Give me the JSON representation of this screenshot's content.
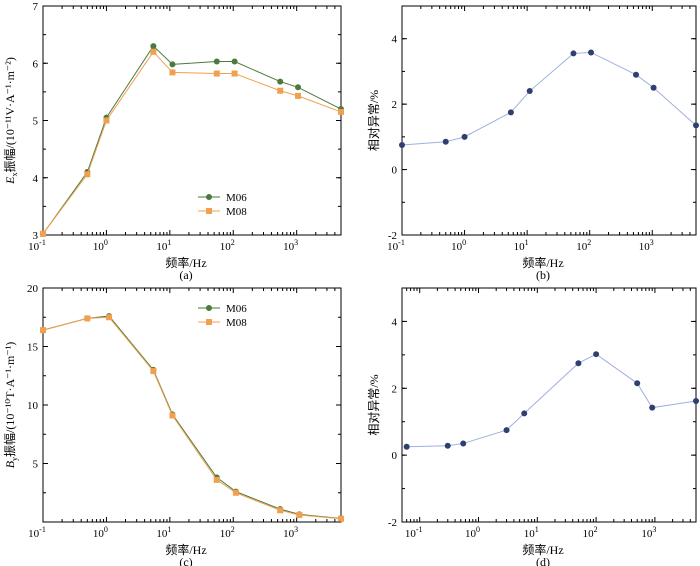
{
  "chart_data": [
    {
      "id": "a",
      "type": "line",
      "panel_label": "(a)",
      "xlabel": "频率/Hz",
      "ylabel_main": "E",
      "ylabel_sub": "x",
      "ylabel_rest": "振幅/(10⁻¹¹V·A⁻¹·m⁻²)",
      "xscale": "log",
      "xlim": [
        0.1,
        5000
      ],
      "ylim": [
        3,
        7
      ],
      "yticks": [
        3,
        4,
        5,
        6,
        7
      ],
      "ytick_labels": [
        "3",
        "4",
        "5",
        "6",
        "7"
      ],
      "xticks": [
        0.1,
        1,
        10,
        100,
        1000
      ],
      "xtick_labels": [
        {
          "base": "10",
          "exp": "-1"
        },
        {
          "base": "10",
          "exp": "0"
        },
        {
          "base": "10",
          "exp": "1"
        },
        {
          "base": "10",
          "exp": "2"
        },
        {
          "base": "10",
          "exp": "3"
        }
      ],
      "legend_position": "center-bottom",
      "series": [
        {
          "name": "M06",
          "color": "#4a7a3c",
          "marker": "circle",
          "x": [
            0.1,
            0.5,
            1.0,
            5.5,
            11,
            55,
            105,
            550,
            1050,
            5000
          ],
          "values": [
            3.02,
            4.1,
            5.05,
            6.3,
            5.98,
            6.03,
            6.03,
            5.68,
            5.58,
            5.2
          ]
        },
        {
          "name": "M08",
          "color": "#f0a050",
          "marker": "square",
          "x": [
            0.1,
            0.5,
            1.0,
            5.5,
            11,
            55,
            105,
            550,
            1050,
            5000
          ],
          "values": [
            3.02,
            4.06,
            5.0,
            6.2,
            5.84,
            5.82,
            5.82,
            5.52,
            5.43,
            5.15
          ]
        }
      ]
    },
    {
      "id": "b",
      "type": "line",
      "panel_label": "(b)",
      "xlabel": "频率/Hz",
      "ylabel": "相对异常/%",
      "xscale": "log",
      "xlim": [
        0.1,
        5000
      ],
      "ylim": [
        -2,
        5
      ],
      "yticks": [
        -2,
        0,
        2,
        4
      ],
      "ytick_labels": [
        "-2",
        "0",
        "2",
        "4"
      ],
      "xticks": [
        0.1,
        1,
        10,
        100,
        1000
      ],
      "xtick_labels": [
        {
          "base": "10",
          "exp": "-1"
        },
        {
          "base": "10",
          "exp": "0"
        },
        {
          "base": "10",
          "exp": "1"
        },
        {
          "base": "10",
          "exp": "2"
        },
        {
          "base": "10",
          "exp": "3"
        }
      ],
      "series": [
        {
          "name": "relative anomaly",
          "color": "#2f3f6e",
          "line_color": "#9fb0e0",
          "marker": "circle",
          "x": [
            0.1,
            0.5,
            1.0,
            5.5,
            11,
            55,
            105,
            550,
            1050,
            5000
          ],
          "values": [
            0.75,
            0.85,
            1.0,
            1.75,
            2.4,
            3.55,
            3.58,
            2.9,
            2.5,
            1.35
          ]
        }
      ]
    },
    {
      "id": "c",
      "type": "line",
      "panel_label": "(c)",
      "xlabel": "频率/Hz",
      "ylabel_main": "B",
      "ylabel_sub": "y",
      "ylabel_rest": "振幅/(10⁻¹⁰T·A⁻¹·m⁻¹)",
      "xscale": "log",
      "xlim": [
        0.1,
        5000
      ],
      "ylim": [
        0,
        20
      ],
      "yticks": [
        5,
        10,
        15,
        20
      ],
      "ytick_labels": [
        "5",
        "10",
        "15",
        "20"
      ],
      "xticks": [
        0.1,
        1,
        10,
        100,
        1000
      ],
      "xtick_labels": [
        {
          "base": "10",
          "exp": "-1"
        },
        {
          "base": "10",
          "exp": "0"
        },
        {
          "base": "10",
          "exp": "1"
        },
        {
          "base": "10",
          "exp": "2"
        },
        {
          "base": "10",
          "exp": "3"
        }
      ],
      "legend_position": "top-center",
      "series": [
        {
          "name": "M06",
          "color": "#4a7a3c",
          "marker": "circle",
          "x": [
            0.1,
            0.5,
            1.1,
            5.5,
            11,
            55,
            110,
            550,
            1100,
            5000
          ],
          "values": [
            16.4,
            17.4,
            17.6,
            13.0,
            9.2,
            3.8,
            2.6,
            1.1,
            0.65,
            0.3
          ]
        },
        {
          "name": "M08",
          "color": "#f0a050",
          "marker": "square",
          "x": [
            0.1,
            0.5,
            1.1,
            5.5,
            11,
            55,
            110,
            550,
            1100,
            5000
          ],
          "values": [
            16.4,
            17.4,
            17.5,
            12.9,
            9.1,
            3.6,
            2.5,
            1.0,
            0.6,
            0.28
          ]
        }
      ]
    },
    {
      "id": "d",
      "type": "line",
      "panel_label": "(d)",
      "xlabel": "频率/Hz",
      "ylabel": "相对异常/%",
      "xscale": "log",
      "xlim": [
        0.05,
        5000
      ],
      "ylim": [
        -2,
        5
      ],
      "yticks": [
        -2,
        0,
        2,
        4
      ],
      "ytick_labels": [
        "-2",
        "0",
        "2",
        "4"
      ],
      "xticks": [
        0.1,
        1,
        10,
        100,
        1000
      ],
      "xtick_labels": [
        {
          "base": "10",
          "exp": "-1"
        },
        {
          "base": "10",
          "exp": "0"
        },
        {
          "base": "10",
          "exp": "1"
        },
        {
          "base": "10",
          "exp": "2"
        },
        {
          "base": "10",
          "exp": "3"
        }
      ],
      "series": [
        {
          "name": "relative anomaly",
          "color": "#2f3f6e",
          "line_color": "#9fb0e0",
          "marker": "circle",
          "x": [
            0.06,
            0.3,
            0.55,
            3,
            6,
            50,
            100,
            500,
            900,
            5000
          ],
          "values": [
            0.25,
            0.28,
            0.35,
            0.75,
            1.25,
            2.75,
            3.02,
            2.15,
            1.42,
            1.62
          ]
        }
      ]
    }
  ]
}
